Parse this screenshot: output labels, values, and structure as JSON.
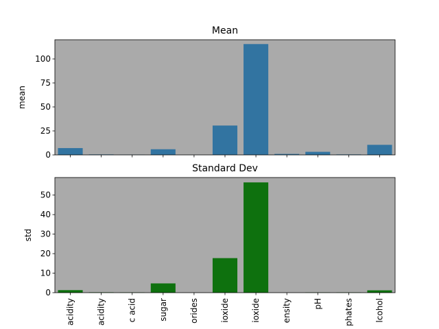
{
  "chart_data": [
    {
      "type": "bar",
      "title": "Mean",
      "xlabel": "",
      "ylabel": "mean",
      "ylim": [
        0,
        120
      ],
      "yticks": [
        0,
        25,
        50,
        75,
        100
      ],
      "grid": false,
      "show_x_tick_labels": false,
      "categories": [
        "acidity",
        "acidity",
        "c acid",
        "sugar",
        "orides",
        "ioxide",
        "ioxide",
        "ensity",
        "pH",
        "phates",
        "lcohol"
      ],
      "values": [
        7.1,
        0.5,
        0.3,
        5.9,
        0.05,
        30.6,
        115.5,
        1.0,
        3.2,
        0.5,
        10.5
      ],
      "color": "#3274a1",
      "plot_background": "#aaaaaa"
    },
    {
      "type": "bar",
      "title": "Standard Dev",
      "xlabel": "",
      "ylabel": "std",
      "ylim": [
        0,
        59
      ],
      "yticks": [
        0,
        10,
        20,
        30,
        40,
        50
      ],
      "grid": false,
      "show_x_tick_labels": true,
      "categories": [
        "acidity",
        "acidity",
        "c acid",
        "sugar",
        "orides",
        "ioxide",
        "ioxide",
        "ensity",
        "pH",
        "phates",
        "lcohol"
      ],
      "values": [
        1.3,
        0.2,
        0.15,
        4.75,
        0.03,
        17.7,
        56.5,
        0.003,
        0.16,
        0.15,
        1.2
      ],
      "color": "#0e710e",
      "plot_background": "#aaaaaa"
    }
  ]
}
